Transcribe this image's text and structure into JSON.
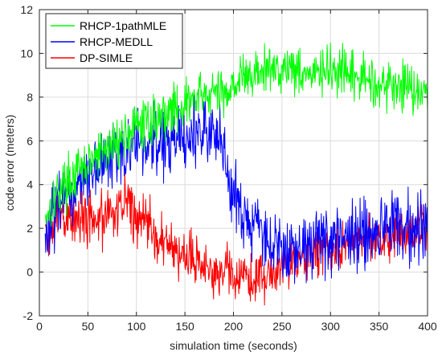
{
  "chart_data": {
    "type": "line",
    "title": "",
    "xlabel": "simulation time (seconds)",
    "ylabel": "code error (meters)",
    "xlim": [
      0,
      400
    ],
    "ylim": [
      -2,
      12
    ],
    "xticks": [
      0,
      50,
      100,
      150,
      200,
      250,
      300,
      350,
      400
    ],
    "yticks": [
      -2,
      0,
      2,
      4,
      6,
      8,
      10,
      12
    ],
    "grid": true,
    "legend_position": "top-left",
    "series": [
      {
        "name": "RHCP-1pathMLE",
        "color": "#00ff00",
        "x": [
          6,
          20,
          40,
          60,
          80,
          100,
          120,
          140,
          160,
          180,
          190,
          200,
          220,
          240,
          260,
          280,
          300,
          320,
          340,
          360,
          380,
          400
        ],
        "y": [
          2.6,
          3.8,
          4.5,
          5.3,
          6.0,
          6.6,
          7.0,
          7.5,
          7.9,
          8.2,
          8.1,
          8.7,
          9.0,
          9.3,
          9.4,
          9.0,
          9.2,
          8.9,
          8.8,
          8.5,
          8.6,
          8.1
        ]
      },
      {
        "name": "RHCP-MEDLL",
        "color": "#0000ff",
        "x": [
          6,
          20,
          40,
          60,
          80,
          100,
          120,
          140,
          160,
          180,
          190,
          195,
          200,
          205,
          210,
          220,
          230,
          240,
          250,
          260,
          280,
          300,
          320,
          340,
          360,
          380,
          400
        ],
        "y": [
          1.6,
          3.3,
          3.9,
          4.6,
          5.4,
          5.7,
          5.9,
          6.0,
          6.3,
          6.3,
          6.0,
          4.0,
          3.6,
          3.3,
          2.4,
          2.2,
          1.7,
          1.2,
          1.0,
          1.1,
          1.3,
          1.5,
          1.6,
          1.8,
          1.9,
          2.0,
          2.2
        ]
      },
      {
        "name": "DP-SIMLE",
        "color": "#ff0000",
        "x": [
          6,
          20,
          40,
          60,
          80,
          90,
          100,
          110,
          120,
          130,
          140,
          150,
          160,
          170,
          180,
          190,
          200,
          220,
          240,
          260,
          280,
          300,
          320,
          340,
          360,
          380,
          400
        ],
        "y": [
          1.6,
          2.4,
          2.7,
          2.5,
          2.6,
          3.3,
          2.5,
          2.2,
          1.6,
          1.3,
          1.0,
          0.8,
          0.6,
          0.3,
          0.0,
          0.1,
          -0.1,
          -0.4,
          0.0,
          0.4,
          0.8,
          1.0,
          1.2,
          1.5,
          1.6,
          1.8,
          1.8
        ]
      }
    ]
  }
}
